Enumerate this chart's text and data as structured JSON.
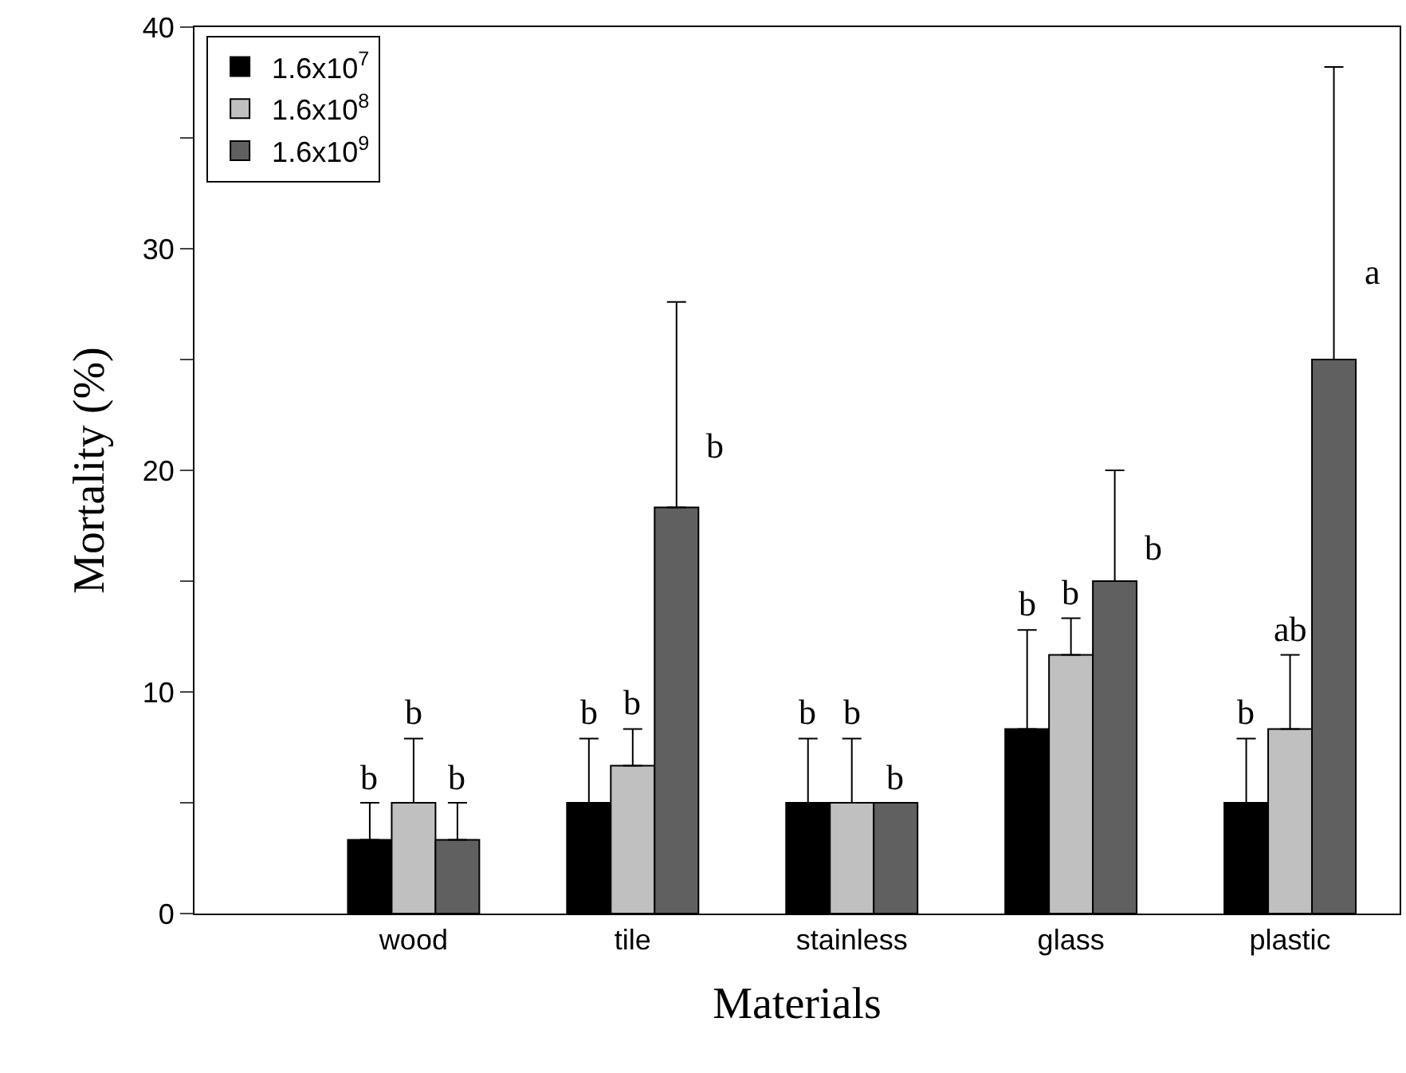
{
  "chart_data": {
    "type": "bar",
    "xlabel": "Materials",
    "ylabel": "Mortality (%)",
    "categories": [
      "wood",
      "tile",
      "stainless",
      "glass",
      "plastic"
    ],
    "series": [
      {
        "name": "1.6x10$^{7}$",
        "color": "#000000",
        "values": [
          3.33,
          5,
          5,
          8.33,
          5
        ],
        "errors": [
          [
            3.33,
            5
          ],
          [
            5,
            7.9
          ],
          [
            5,
            7.9
          ],
          [
            8.33,
            12.8
          ],
          [
            5,
            7.9
          ]
        ],
        "value_labels": [
          "b",
          "b",
          "b",
          "b",
          "b"
        ]
      },
      {
        "name": "1.6x10$^{8}$",
        "color": "#c0c0c0",
        "values": [
          5,
          6.67,
          5,
          11.67,
          8.33
        ],
        "errors": [
          [
            5,
            7.9
          ],
          [
            6.67,
            8.33
          ],
          [
            5,
            7.9
          ],
          [
            11.67,
            13.33
          ],
          [
            8.33,
            11.67
          ]
        ],
        "value_labels": [
          "b",
          "b",
          "b",
          "b",
          "ab"
        ]
      },
      {
        "name": "1.6x10$^{9}$",
        "color": "#606060",
        "values": [
          3.33,
          18.33,
          5,
          15,
          25
        ],
        "errors": [
          [
            3.33,
            5
          ],
          [
            18.33,
            27.6
          ],
          [
            5,
            5
          ],
          [
            15,
            20
          ],
          [
            25,
            38.2
          ]
        ],
        "value_labels": [
          "b",
          "b",
          "b",
          "b",
          "a"
        ]
      }
    ],
    "ylim": [
      0,
      40
    ],
    "yticks": [
      0,
      {
        "value": 5,
        "label": null
      },
      10,
      {
        "value": 15,
        "label": null
      },
      20,
      {
        "value": 25,
        "label": null
      },
      30,
      {
        "value": 35,
        "label": null
      },
      40
    ],
    "grid": false,
    "legend": "top left"
  }
}
